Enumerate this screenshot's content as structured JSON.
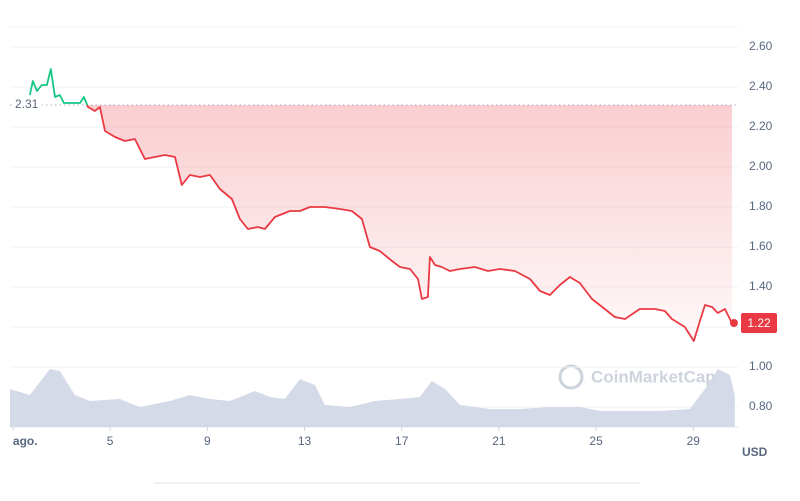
{
  "chart_data": {
    "type": "line",
    "x": [
      1.7,
      1.82,
      1.99,
      2.19,
      2.4,
      2.56,
      2.73,
      2.93,
      3.1,
      3.43,
      3.76,
      3.92,
      4.09,
      4.37,
      4.58,
      4.79,
      5.2,
      5.61,
      6.02,
      6.43,
      6.84,
      7.26,
      7.67,
      7.95,
      8.28,
      8.7,
      9.11,
      9.52,
      10.01,
      10.34,
      10.67,
      11.08,
      11.37,
      11.78,
      12.4,
      12.81,
      13.22,
      13.84,
      14.46,
      14.95,
      15.36,
      15.69,
      16.1,
      16.6,
      16.93,
      17.34,
      17.67,
      17.83,
      18.08,
      18.16,
      18.37,
      18.65,
      18.98,
      19.4,
      20.01,
      20.55,
      21.04,
      21.66,
      22.28,
      22.69,
      23.1,
      23.51,
      23.92,
      24.33,
      24.83,
      25.36,
      25.77,
      26.19,
      26.8,
      27.42,
      27.83,
      28.12,
      28.65,
      29.02,
      29.27,
      29.48,
      29.77,
      30.01,
      30.3,
      30.59
    ],
    "series": [
      {
        "values": [
          2.36,
          2.43,
          2.38,
          2.41,
          2.41,
          2.49,
          2.35,
          2.36,
          2.32,
          2.32,
          2.32,
          2.35,
          2.3,
          2.28,
          2.3,
          2.18,
          2.15,
          2.13,
          2.14,
          2.04,
          2.05,
          2.06,
          2.05,
          1.91,
          1.96,
          1.95,
          1.96,
          1.89,
          1.84,
          1.74,
          1.69,
          1.7,
          1.69,
          1.75,
          1.78,
          1.78,
          1.8,
          1.8,
          1.79,
          1.78,
          1.74,
          1.6,
          1.58,
          1.53,
          1.5,
          1.49,
          1.44,
          1.34,
          1.35,
          1.55,
          1.51,
          1.5,
          1.48,
          1.49,
          1.5,
          1.48,
          1.49,
          1.48,
          1.44,
          1.38,
          1.36,
          1.41,
          1.45,
          1.42,
          1.34,
          1.29,
          1.25,
          1.24,
          1.29,
          1.29,
          1.28,
          1.24,
          1.2,
          1.13,
          1.23,
          1.31,
          1.3,
          1.27,
          1.29,
          1.22
        ]
      }
    ],
    "up_color": "#16c784",
    "down_color": "#ea3943",
    "baseline": 2.31,
    "last_price": 1.22,
    "volume": {
      "color": "#cfd6e4",
      "x": [
        0.88,
        1.7,
        2.52,
        2.93,
        3.55,
        4.17,
        5.4,
        6.22,
        7.46,
        8.28,
        9.11,
        9.93,
        10.96,
        11.58,
        12.19,
        12.81,
        13.43,
        13.84,
        14.87,
        15.9,
        16.93,
        17.75,
        18.24,
        18.78,
        19.4,
        20.63,
        21.86,
        23.1,
        24.33,
        25.16,
        26.39,
        27.63,
        28.86,
        29.48,
        30.01,
        30.51,
        30.71
      ],
      "values": [
        0.89,
        0.86,
        0.99,
        0.98,
        0.86,
        0.83,
        0.84,
        0.8,
        0.83,
        0.86,
        0.84,
        0.83,
        0.88,
        0.85,
        0.84,
        0.94,
        0.91,
        0.81,
        0.8,
        0.83,
        0.84,
        0.85,
        0.93,
        0.89,
        0.81,
        0.79,
        0.79,
        0.8,
        0.8,
        0.78,
        0.78,
        0.78,
        0.79,
        0.89,
        0.99,
        0.96,
        0.86
      ]
    },
    "xlim": [
      0.88,
      30.84
    ],
    "xticks": [
      {
        "value": 1,
        "label": "ago."
      },
      5,
      9,
      13,
      17,
      21,
      25,
      29
    ],
    "ylim": [
      0.7,
      2.7
    ],
    "yticks": [
      {
        "value": 0.8,
        "label": "0.80"
      },
      {
        "value": 1.0,
        "label": "1.00"
      },
      {
        "value": 1.2,
        "label": "1.20"
      },
      {
        "value": 1.4,
        "label": "1.40"
      },
      {
        "value": 1.6,
        "label": "1.60"
      },
      {
        "value": 1.8,
        "label": "1.80"
      },
      {
        "value": 2.0,
        "label": "2.00"
      },
      {
        "value": 2.2,
        "label": "2.20"
      },
      {
        "value": 2.4,
        "label": "2.40"
      },
      {
        "value": 2.6,
        "label": "2.60"
      }
    ],
    "grid": true,
    "y_unit": "USD",
    "watermark": "CoinMarketCap"
  }
}
